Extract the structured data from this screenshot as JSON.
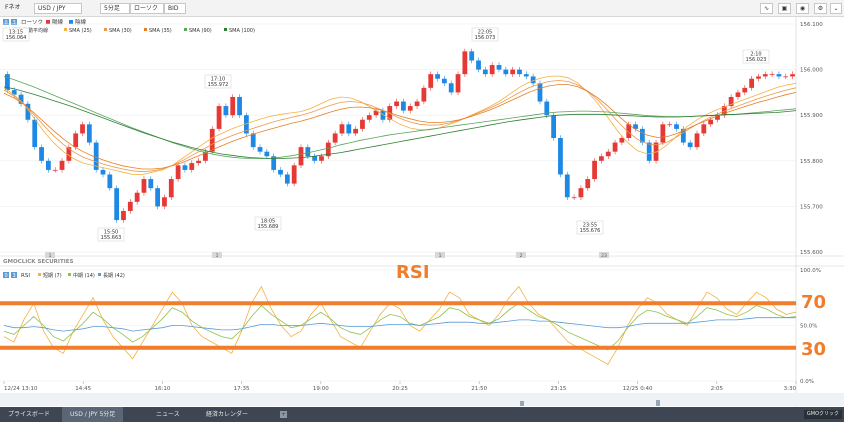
{
  "toolbar": {
    "brand": "Fネオ",
    "symbol": "USD / JPY",
    "interval": "5分足",
    "chart_type": "ローソク",
    "price_type": "BID",
    "icons": [
      "line-tool-icon",
      "screenshot-icon",
      "camera-icon",
      "settings-icon",
      "chevron-down-icon"
    ]
  },
  "legend": {
    "badges": [
      "0",
      "3"
    ],
    "candle": "ローソク",
    "up": "陽線",
    "down": "陰線",
    "ma_title": "単純移動平均線",
    "sma": [
      {
        "label": "SMA (25)",
        "color": "#f5b041"
      },
      {
        "label": "SMA (30)",
        "color": "#eb984e"
      },
      {
        "label": "SMA (35)",
        "color": "#e67e22"
      },
      {
        "label": "SMA (90)",
        "color": "#58a55c"
      },
      {
        "label": "SMA (100)",
        "color": "#2e7d32"
      }
    ]
  },
  "rsi_legend": {
    "badges": [
      "0",
      "3"
    ],
    "title": "RSI",
    "items": [
      {
        "label": "短期 (7)",
        "color": "#f5b041"
      },
      {
        "label": "中期 (14)",
        "color": "#8bc34a"
      },
      {
        "label": "長期 (42)",
        "color": "#5b9bd5"
      }
    ]
  },
  "watermark": "GMOCLICK SECURITIES",
  "annotations": {
    "rsi_label": "RSI",
    "level_70": "70",
    "level_30": "30"
  },
  "markers": [
    "1",
    "1",
    "1",
    "2",
    "23"
  ],
  "price_callouts": [
    {
      "time": "13:15",
      "price": "156.064"
    },
    {
      "time": "17:10",
      "price": "155.972"
    },
    {
      "time": "22:05",
      "price": "156.073"
    },
    {
      "time": "2:10",
      "price": "156.023"
    },
    {
      "time": "15:50",
      "price": "155.663"
    },
    {
      "time": "18:05",
      "price": "155.689"
    },
    {
      "time": "23:55",
      "price": "155.676"
    }
  ],
  "chart_data": {
    "type": "line",
    "title": "",
    "symbol": "USD / JPY",
    "interval": "5分足",
    "price_axis": {
      "ticks": [
        "156.100",
        "156.000",
        "155.900",
        "155.800",
        "155.700",
        "155.600"
      ],
      "range": [
        155.6,
        156.1
      ]
    },
    "rsi_axis": {
      "ticks": [
        "100.0%",
        "50.0%",
        "0.0%"
      ],
      "range": [
        0,
        100
      ]
    },
    "x_ticks": [
      "12/24 13:10",
      "14:45",
      "16:10",
      "17:35",
      "19:00",
      "20:25",
      "21:50",
      "23:15",
      "12/25 0:40",
      "2:05",
      "3:30"
    ],
    "reference_lines": [
      70,
      30
    ],
    "candles": {
      "o": [
        155.99,
        155.955,
        155.945,
        155.925,
        155.89,
        155.83,
        155.8,
        155.78,
        155.78,
        155.8,
        155.83,
        155.86,
        155.88,
        155.84,
        155.78,
        155.77,
        155.74,
        155.67,
        155.69,
        155.71,
        155.73,
        155.76,
        155.74,
        155.7,
        155.72,
        155.76,
        155.79,
        155.78,
        155.795,
        155.8,
        155.82,
        155.87,
        155.92,
        155.9,
        155.94,
        155.9,
        155.86,
        155.83,
        155.82,
        155.81,
        155.78,
        155.77,
        155.75,
        155.79,
        155.83,
        155.81,
        155.8,
        155.81,
        155.84,
        155.86,
        155.88,
        155.86,
        155.87,
        155.89,
        155.9,
        155.91,
        155.89,
        155.92,
        155.93,
        155.91,
        155.92,
        155.93,
        155.96,
        155.99,
        155.98,
        155.97,
        155.95,
        155.99,
        156.04,
        156.02,
        156.0,
        155.99,
        156.01,
        156.0,
        155.99,
        156.0,
        155.99,
        155.985,
        155.97,
        155.93,
        155.9,
        155.85,
        155.77,
        155.72,
        155.72,
        155.74,
        155.76,
        155.8,
        155.81,
        155.82,
        155.84,
        155.85,
        155.88,
        155.87,
        155.84,
        155.8,
        155.84,
        155.88,
        155.88,
        155.87,
        155.84,
        155.83,
        155.86,
        155.88,
        155.89,
        155.9,
        155.92,
        155.94,
        155.95,
        155.96,
        155.98,
        155.985,
        155.99,
        155.99,
        155.985,
        155.985
      ],
      "c": [
        155.955,
        155.945,
        155.925,
        155.89,
        155.83,
        155.8,
        155.78,
        155.78,
        155.8,
        155.83,
        155.86,
        155.88,
        155.84,
        155.78,
        155.77,
        155.74,
        155.67,
        155.69,
        155.71,
        155.73,
        155.76,
        155.74,
        155.7,
        155.72,
        155.76,
        155.79,
        155.78,
        155.795,
        155.8,
        155.82,
        155.87,
        155.92,
        155.9,
        155.94,
        155.9,
        155.86,
        155.83,
        155.82,
        155.81,
        155.78,
        155.77,
        155.75,
        155.79,
        155.83,
        155.81,
        155.8,
        155.81,
        155.84,
        155.86,
        155.88,
        155.86,
        155.87,
        155.89,
        155.9,
        155.91,
        155.89,
        155.92,
        155.93,
        155.91,
        155.92,
        155.93,
        155.96,
        155.99,
        155.98,
        155.97,
        155.95,
        155.99,
        156.04,
        156.02,
        156.0,
        155.99,
        156.01,
        156.0,
        155.99,
        156.0,
        155.99,
        155.985,
        155.97,
        155.93,
        155.9,
        155.85,
        155.77,
        155.72,
        155.72,
        155.74,
        155.76,
        155.8,
        155.81,
        155.82,
        155.84,
        155.85,
        155.88,
        155.87,
        155.84,
        155.8,
        155.84,
        155.88,
        155.88,
        155.87,
        155.84,
        155.83,
        155.86,
        155.88,
        155.89,
        155.9,
        155.92,
        155.94,
        155.95,
        155.96,
        155.98,
        155.985,
        155.99,
        155.99,
        155.985,
        155.985,
        155.99
      ]
    },
    "series": [
      {
        "name": "SMA (25)",
        "values": [
          155.96,
          155.945,
          155.925,
          155.895,
          155.865,
          155.84,
          155.82,
          155.805,
          155.795,
          155.79,
          155.785,
          155.78,
          155.775,
          155.77,
          155.77,
          155.775,
          155.78,
          155.79,
          155.805,
          155.82,
          155.835,
          155.85,
          155.86,
          155.87,
          155.878,
          155.885,
          155.892,
          155.898,
          155.902,
          155.905,
          155.908,
          155.915,
          155.925,
          155.935,
          155.94,
          155.938,
          155.93,
          155.918,
          155.905,
          155.892,
          155.88,
          155.872,
          155.868,
          155.868,
          155.872,
          155.88,
          155.888,
          155.898,
          155.908,
          155.918,
          155.93,
          155.945,
          155.96,
          155.972,
          155.98,
          155.985,
          155.986,
          155.982,
          155.97,
          155.95,
          155.925,
          155.895,
          155.865,
          155.84,
          155.822,
          155.815,
          155.82,
          155.835,
          155.855,
          155.875,
          155.89,
          155.902,
          155.912,
          155.92,
          155.928,
          155.936,
          155.944,
          155.952,
          155.96,
          155.966,
          155.97
        ]
      },
      {
        "name": "SMA (30)",
        "values": [
          155.955,
          155.942,
          155.925,
          155.902,
          155.878,
          155.855,
          155.836,
          155.82,
          155.808,
          155.8,
          155.793,
          155.787,
          155.782,
          155.778,
          155.776,
          155.778,
          155.782,
          155.79,
          155.8,
          155.812,
          155.824,
          155.836,
          155.846,
          155.855,
          155.863,
          155.87,
          155.877,
          155.884,
          155.89,
          155.895,
          155.9,
          155.906,
          155.914,
          155.922,
          155.928,
          155.93,
          155.928,
          155.922,
          155.913,
          155.903,
          155.893,
          155.885,
          155.88,
          155.878,
          155.879,
          155.883,
          155.889,
          155.897,
          155.906,
          155.915,
          155.925,
          155.937,
          155.949,
          155.96,
          155.968,
          155.974,
          155.976,
          155.974,
          155.966,
          155.952,
          155.933,
          155.91,
          155.886,
          155.864,
          155.847,
          155.837,
          155.835,
          155.841,
          155.853,
          155.867,
          155.88,
          155.892,
          155.902,
          155.911,
          155.919,
          155.927,
          155.935,
          155.942,
          155.949,
          155.955,
          155.96
        ]
      },
      {
        "name": "SMA (35)",
        "values": [
          155.948,
          155.938,
          155.924,
          155.906,
          155.886,
          155.866,
          155.848,
          155.832,
          155.82,
          155.81,
          155.802,
          155.795,
          155.789,
          155.785,
          155.782,
          155.782,
          155.784,
          155.789,
          155.796,
          155.805,
          155.814,
          155.824,
          155.833,
          155.842,
          155.85,
          155.857,
          155.864,
          155.87,
          155.876,
          155.882,
          155.887,
          155.893,
          155.9,
          155.907,
          155.913,
          155.917,
          155.918,
          155.916,
          155.912,
          155.905,
          155.898,
          155.892,
          155.887,
          155.884,
          155.884,
          155.886,
          155.89,
          155.896,
          155.903,
          155.911,
          155.92,
          155.93,
          155.94,
          155.95,
          155.958,
          155.964,
          155.967,
          155.967,
          155.962,
          155.952,
          155.938,
          155.92,
          155.9,
          155.881,
          155.866,
          155.856,
          155.851,
          155.853,
          155.86,
          155.87,
          155.88,
          155.889,
          155.898,
          155.906,
          155.913,
          155.92,
          155.927,
          155.933,
          155.939,
          155.945,
          155.95
        ]
      },
      {
        "name": "SMA (90)",
        "values": [
          155.985,
          155.978,
          155.97,
          155.962,
          155.953,
          155.944,
          155.935,
          155.926,
          155.917,
          155.908,
          155.899,
          155.89,
          155.881,
          155.872,
          155.864,
          155.856,
          155.848,
          155.84,
          155.833,
          155.826,
          155.82,
          155.815,
          155.811,
          155.808,
          155.806,
          155.805,
          155.805,
          155.806,
          155.808,
          155.811,
          155.815,
          155.819,
          155.824,
          155.829,
          155.835,
          155.84,
          155.845,
          155.849,
          155.853,
          155.857,
          155.86,
          155.863,
          155.866,
          155.869,
          155.872,
          155.875,
          155.878,
          155.881,
          155.884,
          155.887,
          155.89,
          155.893,
          155.896,
          155.899,
          155.902,
          155.905,
          155.907,
          155.908,
          155.909,
          155.909,
          155.908,
          155.907,
          155.905,
          155.903,
          155.901,
          155.899,
          155.898,
          155.897,
          155.897,
          155.897,
          155.898,
          155.899,
          155.9,
          155.901,
          155.902,
          155.904,
          155.906,
          155.908,
          155.91,
          155.912,
          155.914
        ]
      },
      {
        "name": "SMA (100)",
        "values": [
          155.962,
          155.958,
          155.952,
          155.946,
          155.939,
          155.932,
          155.925,
          155.918,
          155.91,
          155.902,
          155.894,
          155.886,
          155.878,
          155.87,
          155.862,
          155.855,
          155.848,
          155.841,
          155.835,
          155.829,
          155.824,
          155.819,
          155.815,
          155.812,
          155.809,
          155.807,
          155.806,
          155.805,
          155.805,
          155.806,
          155.807,
          155.809,
          155.812,
          155.815,
          155.818,
          155.822,
          155.826,
          155.83,
          155.834,
          155.838,
          155.842,
          155.846,
          155.85,
          155.854,
          155.858,
          155.862,
          155.866,
          155.87,
          155.874,
          155.878,
          155.882,
          155.886,
          155.889,
          155.892,
          155.895,
          155.898,
          155.9,
          155.901,
          155.902,
          155.902,
          155.902,
          155.901,
          155.9,
          155.899,
          155.898,
          155.897,
          155.896,
          155.896,
          155.896,
          155.897,
          155.898,
          155.899,
          155.9,
          155.901,
          155.902,
          155.903,
          155.904,
          155.905,
          155.906,
          155.908,
          155.91
        ]
      }
    ],
    "rsi": [
      {
        "name": "短期 (7)",
        "values": [
          40,
          35,
          55,
          70,
          45,
          30,
          25,
          45,
          60,
          75,
          55,
          40,
          30,
          20,
          35,
          50,
          65,
          80,
          70,
          50,
          40,
          35,
          30,
          25,
          45,
          70,
          85,
          65,
          50,
          40,
          45,
          60,
          70,
          55,
          40,
          35,
          30,
          45,
          60,
          70,
          65,
          50,
          45,
          55,
          65,
          80,
          75,
          60,
          55,
          50,
          60,
          75,
          85,
          70,
          60,
          55,
          45,
          35,
          30,
          25,
          20,
          15,
          30,
          50,
          65,
          75,
          70,
          60,
          55,
          50,
          65,
          80,
          75,
          65,
          60,
          70,
          80,
          75,
          65,
          60,
          62
        ]
      },
      {
        "name": "中期 (14)",
        "values": [
          45,
          42,
          50,
          58,
          50,
          40,
          36,
          44,
          52,
          62,
          56,
          48,
          42,
          35,
          40,
          48,
          56,
          66,
          62,
          54,
          48,
          44,
          40,
          38,
          46,
          58,
          68,
          60,
          54,
          48,
          50,
          56,
          62,
          56,
          48,
          44,
          42,
          48,
          55,
          60,
          58,
          52,
          50,
          54,
          58,
          66,
          64,
          58,
          55,
          52,
          56,
          64,
          70,
          64,
          58,
          55,
          50,
          44,
          40,
          36,
          32,
          28,
          36,
          48,
          58,
          64,
          62,
          58,
          55,
          52,
          58,
          66,
          64,
          60,
          58,
          62,
          68,
          65,
          60,
          57,
          58
        ]
      },
      {
        "name": "長期 (42)",
        "values": [
          50,
          48,
          48,
          49,
          48,
          46,
          45,
          46,
          47,
          49,
          49,
          48,
          47,
          45,
          46,
          47,
          48,
          50,
          50,
          49,
          48,
          47,
          46,
          46,
          47,
          49,
          51,
          51,
          50,
          50,
          50,
          51,
          52,
          51,
          50,
          49,
          49,
          49,
          50,
          51,
          51,
          51,
          50,
          51,
          52,
          53,
          53,
          53,
          52,
          52,
          53,
          54,
          55,
          55,
          54,
          54,
          53,
          52,
          51,
          50,
          49,
          48,
          48,
          49,
          51,
          52,
          52,
          52,
          52,
          52,
          53,
          54,
          55,
          55,
          55,
          56,
          57,
          57,
          57,
          57,
          57
        ]
      }
    ]
  }
}
